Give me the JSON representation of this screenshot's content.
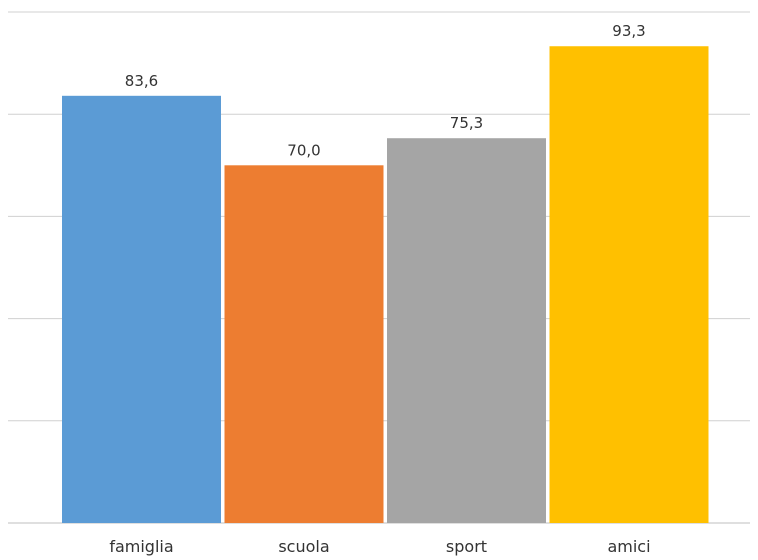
{
  "chart_data": {
    "type": "bar",
    "categories": [
      "famiglia",
      "scuola",
      "sport",
      "amici"
    ],
    "values": [
      83.6,
      70.0,
      75.3,
      93.3
    ],
    "value_labels": [
      "83,6",
      "70,0",
      "75,3",
      "93,3"
    ],
    "colors": [
      "#5B9BD5",
      "#ED7D31",
      "#A5A5A5",
      "#FFC000"
    ],
    "title": "",
    "xlabel": "",
    "ylabel": "",
    "ylim": [
      0,
      100
    ],
    "grid": true,
    "legend": "none"
  }
}
